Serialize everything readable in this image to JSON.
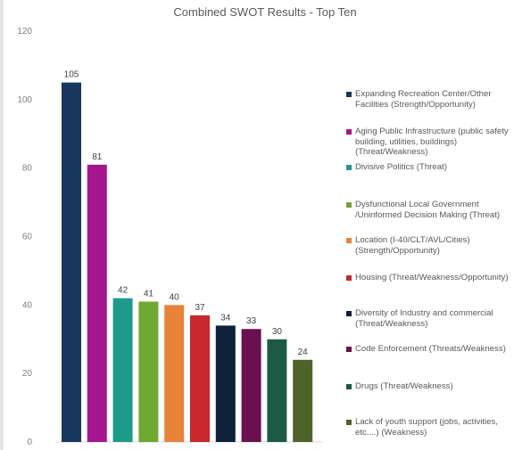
{
  "chart_data": {
    "type": "bar",
    "title": "Combined SWOT Results - Top Ten",
    "xlabel": "",
    "ylabel": "",
    "ylim": [
      0,
      120
    ],
    "yticks": [
      0,
      20,
      40,
      60,
      80,
      100,
      120
    ],
    "grid": false,
    "legend_position": "right",
    "categories": [
      "Expanding Recreation Center/Other Facilities (Strength/Opportunity)",
      "Aging Public Infrastructure (public safety building, utilities, buildings) (Threat/Weakness)",
      "Divisive Politics (Threat)",
      "Dysfunctional Local Government /Uninformed Decision Making (Threat)",
      "Location (I-40/CLT/AVL/Cities) (Strength/Opportunity)",
      "Housing (Threat/Weakness/Opportunity)",
      "Diversity of Industry and commercial (Threat/Weakness)",
      "Code Enforcement (Threats/Weakness)",
      "Drugs (Threat/Weakness)",
      "Lack of youth support (jobs, activities, etc....) (Weakness)"
    ],
    "values": [
      105,
      81,
      42,
      41,
      40,
      37,
      34,
      33,
      30,
      24
    ],
    "colors": [
      "#17375e",
      "#a5168e",
      "#1d9a8a",
      "#6fa832",
      "#e8833a",
      "#c8282e",
      "#0f2136",
      "#6a1050",
      "#1c5a46",
      "#4f6228"
    ]
  }
}
